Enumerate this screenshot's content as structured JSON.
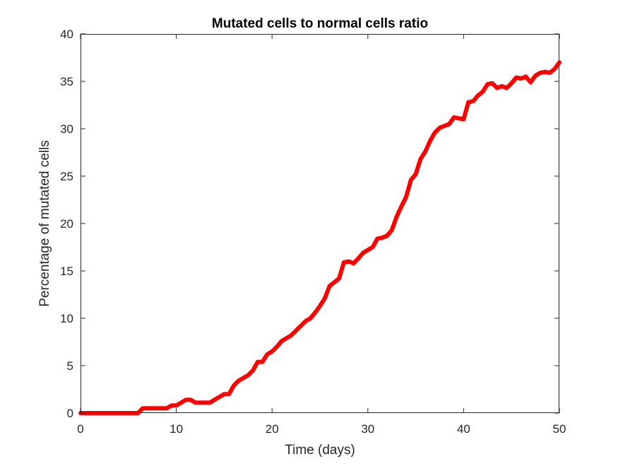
{
  "chart_data": {
    "type": "line",
    "title": "Mutated cells to normal cells ratio",
    "xlabel": "Time (days)",
    "ylabel": "Percentage of mutated cells",
    "xlim": [
      0,
      50
    ],
    "ylim": [
      0,
      40
    ],
    "xticks": [
      0,
      10,
      20,
      30,
      40,
      50
    ],
    "yticks": [
      0,
      5,
      10,
      15,
      20,
      25,
      30,
      35,
      40
    ],
    "grid": false,
    "box": true,
    "series": [
      {
        "color": "#ff0000",
        "x": [
          0,
          1,
          2,
          3,
          4,
          5,
          6,
          6.5,
          7,
          8,
          9,
          9.5,
          10,
          10.5,
          11,
          11.5,
          12,
          13,
          13.5,
          14,
          14.5,
          15,
          15.5,
          16,
          16.5,
          17,
          17.5,
          18,
          18.5,
          19,
          19.5,
          20,
          20.5,
          21,
          22,
          22.5,
          23,
          23.5,
          24,
          24.5,
          25,
          25.5,
          26,
          26.5,
          27,
          27.5,
          28,
          28.5,
          29,
          29.5,
          30,
          30.5,
          31,
          31.5,
          32,
          32.5,
          33,
          33.5,
          34,
          34.5,
          35,
          35.5,
          36,
          36.5,
          37,
          37.5,
          38,
          38.5,
          39,
          39.5,
          40,
          40.5,
          41,
          41.5,
          42,
          42.5,
          43,
          43.5,
          44,
          44.5,
          45,
          45.5,
          46,
          46.5,
          47,
          47.5,
          48,
          48.5,
          49,
          49.5,
          50
        ],
        "y": [
          0,
          0,
          0,
          0,
          0,
          0,
          0,
          0.5,
          0.5,
          0.5,
          0.5,
          0.8,
          0.8,
          1.1,
          1.4,
          1.4,
          1.1,
          1.1,
          1.1,
          1.4,
          1.7,
          2.0,
          2.0,
          2.9,
          3.4,
          3.7,
          4.0,
          4.5,
          5.4,
          5.4,
          6.2,
          6.5,
          7.0,
          7.6,
          8.2,
          8.7,
          9.2,
          9.7,
          10.0,
          10.6,
          11.3,
          12.1,
          13.4,
          13.8,
          14.2,
          15.9,
          16.0,
          15.8,
          16.3,
          16.9,
          17.2,
          17.5,
          18.4,
          18.5,
          18.7,
          19.3,
          20.7,
          21.8,
          22.8,
          24.6,
          25.2,
          26.8,
          27.6,
          28.7,
          29.6,
          30.1,
          30.3,
          30.5,
          31.2,
          31.1,
          31.0,
          32.8,
          32.9,
          33.5,
          33.9,
          34.7,
          34.8,
          34.3,
          34.5,
          34.3,
          34.8,
          35.4,
          35.3,
          35.5,
          34.9,
          35.6,
          35.9,
          36.0,
          35.9,
          36.3,
          37.0
        ]
      }
    ]
  }
}
